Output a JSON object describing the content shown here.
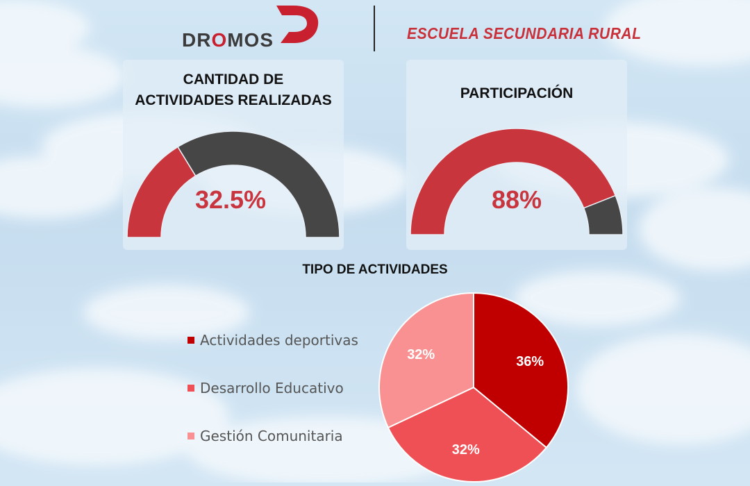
{
  "header": {
    "logo_text_parts": [
      "DR",
      "O",
      "MOS"
    ],
    "school": "ESCUELA SECUNDARIA RURAL",
    "brand_colors": {
      "red": "#c8202f",
      "dark": "#3b3b3b"
    }
  },
  "gauges": [
    {
      "title_lines": [
        "CANTIDAD DE",
        "ACTIVIDADES REALIZADAS"
      ],
      "value_label": "32.5%"
    },
    {
      "title_lines": [
        "PARTICIPACIÓN"
      ],
      "value_label": "88%"
    }
  ],
  "pie_section": {
    "title": "TIPO DE ACTIVIDADES"
  },
  "colors": {
    "gauge_fill": "#c9353d",
    "gauge_rest": "#464646",
    "gauge_value_text": "#c8353f",
    "pie": [
      "#c00000",
      "#ef5055",
      "#f99192"
    ]
  },
  "chart_data": [
    {
      "type": "gauge",
      "title": "CANTIDAD DE ACTIVIDADES REALIZADAS",
      "value": 32.5,
      "unit": "%",
      "range": [
        0,
        100
      ]
    },
    {
      "type": "gauge",
      "title": "PARTICIPACIÓN",
      "value": 88,
      "unit": "%",
      "range": [
        0,
        100
      ]
    },
    {
      "type": "pie",
      "title": "TIPO DE ACTIVIDADES",
      "categories": [
        "Actividades deportivas",
        "Desarrollo Educativo",
        "Gestión Comunitaria"
      ],
      "values": [
        36,
        32,
        32
      ],
      "labels": [
        "36%",
        "32%",
        "32%"
      ],
      "legend": "left"
    }
  ]
}
